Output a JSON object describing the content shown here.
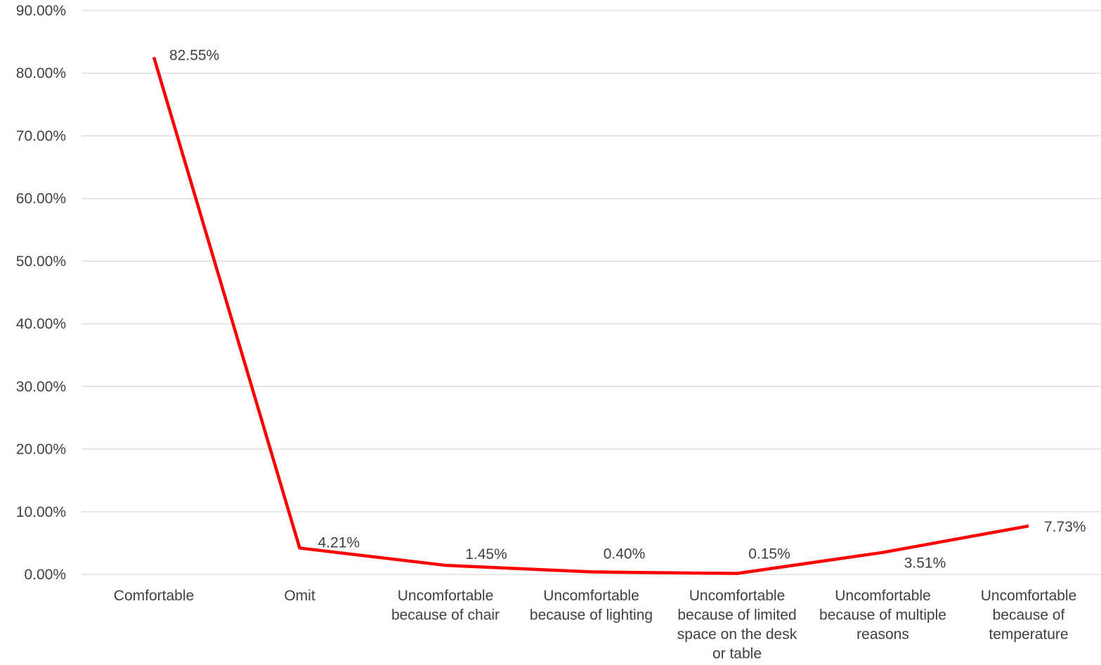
{
  "chart_data": {
    "type": "line",
    "categories": [
      [
        "Comfortable"
      ],
      [
        "Omit"
      ],
      [
        "Uncomfortable",
        "because of chair"
      ],
      [
        "Uncomfortable",
        "because of lighting"
      ],
      [
        "Uncomfortable",
        "because of limited",
        "space on the desk",
        "or table"
      ],
      [
        "Uncomfortable",
        "because of multiple",
        "reasons"
      ],
      [
        "Uncomfortable",
        "because of",
        "temperature"
      ]
    ],
    "values": [
      82.55,
      4.21,
      1.45,
      0.4,
      0.15,
      3.51,
      7.73
    ],
    "data_labels": [
      "82.55%",
      "4.21%",
      "1.45%",
      "0.40%",
      "0.15%",
      "3.51%",
      "7.73%"
    ],
    "ylim": [
      0,
      90
    ],
    "yticks": [
      0,
      10,
      20,
      30,
      40,
      50,
      60,
      70,
      80,
      90
    ],
    "ytick_labels": [
      "0.00%",
      "10.00%",
      "20.00%",
      "30.00%",
      "40.00%",
      "50.00%",
      "60.00%",
      "70.00%",
      "80.00%",
      "90.00%"
    ],
    "grid": true,
    "line_color": "#ff0000",
    "title": "",
    "xlabel": "",
    "ylabel": ""
  }
}
